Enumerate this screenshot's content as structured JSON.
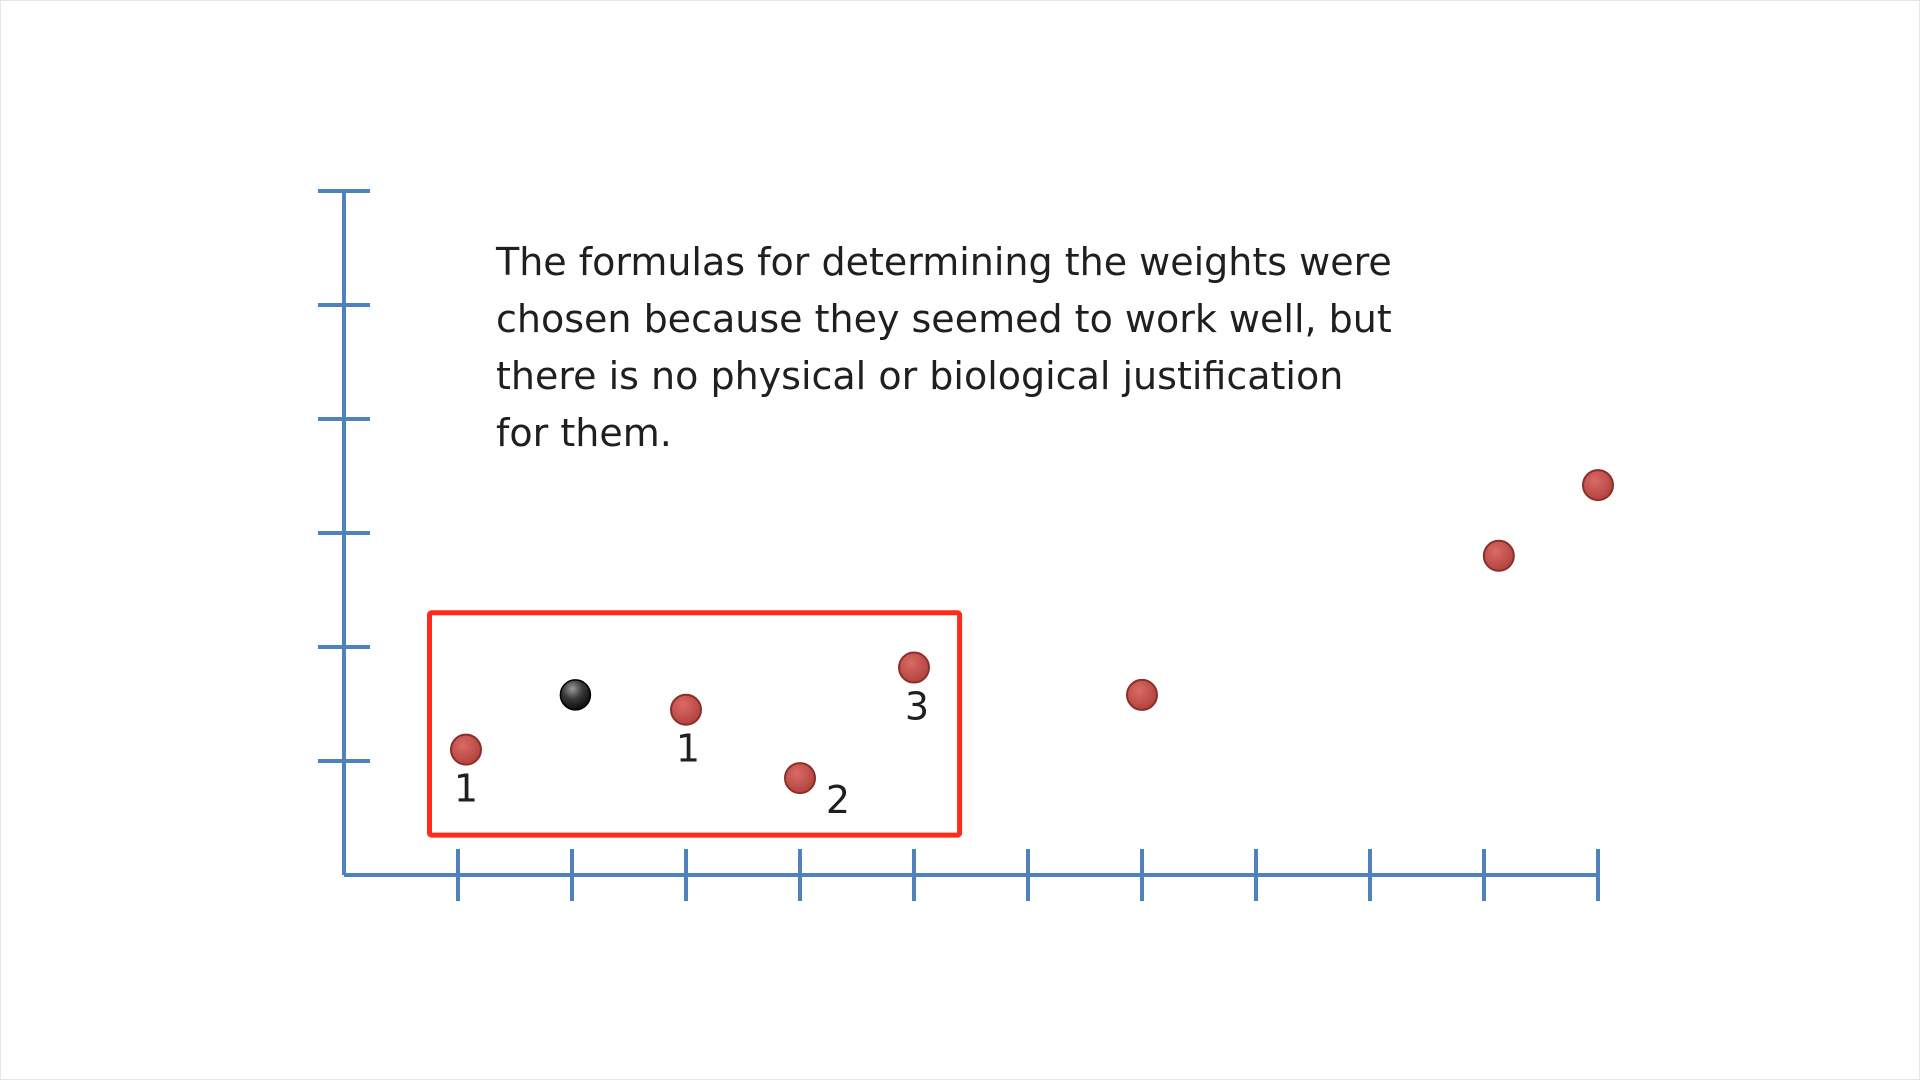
{
  "slide": {
    "caption_lines": [
      "The formulas for determining the weights were",
      "chosen because they seemed to work well, but",
      "there is no physical or biological justification",
      "for them."
    ]
  },
  "chart_data": {
    "type": "scatter",
    "title": "",
    "xlabel": "",
    "ylabel": "",
    "xlim": [
      0,
      11
    ],
    "ylim": [
      0,
      6
    ],
    "x_ticks": [
      1,
      2,
      3,
      4,
      5,
      6,
      7,
      8,
      9,
      10,
      11
    ],
    "y_ticks": [
      1,
      2,
      3,
      4,
      5,
      6
    ],
    "grid": false,
    "axis_color": "#4f81bd",
    "point_color": "#c0504d",
    "highlight_point_color": "#2b2b2b",
    "highlight_box_color": "#ff2a1a",
    "highlight_box": {
      "x_range": [
        0.75,
        5.4
      ],
      "y_range": [
        0.35,
        2.3
      ]
    },
    "series": [
      {
        "points": [
          {
            "x": 1.07,
            "y": 1.1,
            "label": "1"
          },
          {
            "x": 3.0,
            "y": 1.45,
            "label": "1"
          },
          {
            "x": 4.0,
            "y": 0.85,
            "label": "2"
          },
          {
            "x": 5.0,
            "y": 1.82,
            "label": "3"
          },
          {
            "x": 7.0,
            "y": 1.58,
            "label": ""
          },
          {
            "x": 10.13,
            "y": 2.8,
            "label": ""
          },
          {
            "x": 11.0,
            "y": 3.42,
            "label": ""
          }
        ]
      }
    ],
    "query_point": {
      "x": 2.03,
      "y": 1.58
    }
  }
}
